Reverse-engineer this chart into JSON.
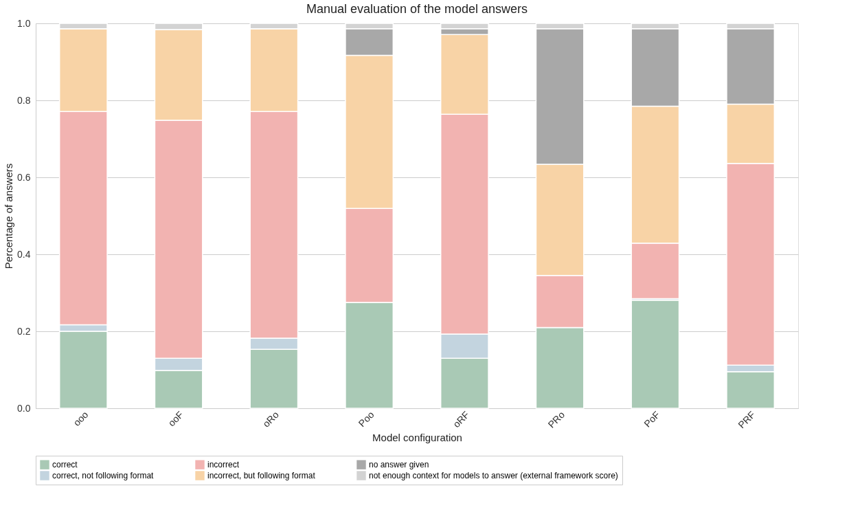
{
  "chart_data": {
    "type": "bar",
    "stacked": true,
    "title": "Manual evaluation of the model answers",
    "xlabel": "Model configuration",
    "ylabel": "Percentage of answers",
    "categories": [
      "ooo",
      "ooF",
      "oRo",
      "Poo",
      "oRF",
      "PRo",
      "PoF",
      "PRF"
    ],
    "series": [
      {
        "name": "correct",
        "color": "#a9c9b5",
        "values": [
          0.2,
          0.098,
          0.153,
          0.275,
          0.13,
          0.21,
          0.281,
          0.095
        ]
      },
      {
        "name": "correct, not following format",
        "color": "#c3d4df",
        "values": [
          0.017,
          0.032,
          0.029,
          0,
          0.063,
          0,
          0.004,
          0.017
        ]
      },
      {
        "name": "incorrect",
        "color": "#f2b3b1",
        "values": [
          0.554,
          0.618,
          0.589,
          0.244,
          0.571,
          0.135,
          0.144,
          0.524
        ]
      },
      {
        "name": "incorrect, but following format",
        "color": "#f8d3a6",
        "values": [
          0.215,
          0.236,
          0.215,
          0.398,
          0.207,
          0.289,
          0.356,
          0.154
        ]
      },
      {
        "name": "no answer given",
        "color": "#a8a8a8",
        "values": [
          0,
          0,
          0,
          0.069,
          0.015,
          0.352,
          0.201,
          0.196
        ]
      },
      {
        "name": "not enough context for models to answer (external framework score)",
        "color": "#d3d3d3",
        "values": [
          0.014,
          0.016,
          0.014,
          0.014,
          0.014,
          0.014,
          0.014,
          0.014
        ]
      }
    ],
    "ylim": [
      0,
      1.0
    ],
    "yticks": [
      {
        "value": 0,
        "label": "0.0"
      },
      {
        "value": 0.2,
        "label": "0.2"
      },
      {
        "value": 0.4,
        "label": "0.4"
      },
      {
        "value": 0.6,
        "label": "0.6"
      },
      {
        "value": 0.8,
        "label": "0.8"
      },
      {
        "value": 1.0,
        "label": "1.0"
      }
    ],
    "grid": "y",
    "legend": "bottom"
  }
}
